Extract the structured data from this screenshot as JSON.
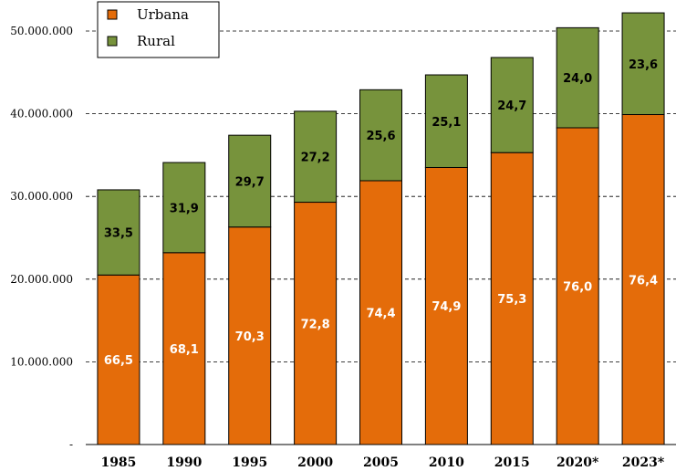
{
  "chart_data": {
    "type": "bar",
    "stacked": true,
    "categories": [
      "1985",
      "1990",
      "1995",
      "2000",
      "2005",
      "2010",
      "2015",
      "2020*",
      "2023*"
    ],
    "series": [
      {
        "name": "Urbana",
        "color": "#E46C0A",
        "values": [
          20500000,
          23200000,
          26300000,
          29300000,
          31900000,
          33500000,
          35300000,
          38300000,
          39900000
        ],
        "labels": [
          "66,5",
          "68,1",
          "70,3",
          "72,8",
          "74,4",
          "74,9",
          "75,3",
          "76,0",
          "76,4"
        ],
        "label_color": "#ffffff"
      },
      {
        "name": "Rural",
        "color": "#77933C",
        "values": [
          10300000,
          10900000,
          11100000,
          11000000,
          11000000,
          11200000,
          11500000,
          12100000,
          12300000
        ],
        "labels": [
          "33,5",
          "31,9",
          "29,7",
          "27,2",
          "25,6",
          "25,1",
          "24,7",
          "24,0",
          "23,6"
        ],
        "label_color": "#000000"
      }
    ],
    "ylim": [
      0,
      50000000
    ],
    "yticks": [
      {
        "value": 0,
        "label": "-"
      },
      {
        "value": 10000000,
        "label": "10.000.000"
      },
      {
        "value": 20000000,
        "label": "20.000.000"
      },
      {
        "value": 30000000,
        "label": "30.000.000"
      },
      {
        "value": 40000000,
        "label": "40.000.000"
      },
      {
        "value": 50000000,
        "label": "50.000.000"
      }
    ],
    "grid": "dashed-horizontal",
    "legend": "top-left",
    "title": "",
    "xlabel": "",
    "ylabel": ""
  }
}
